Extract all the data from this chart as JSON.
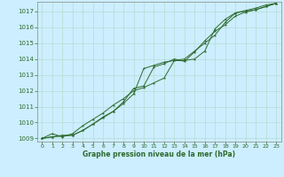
{
  "title": "Graphe pression niveau de la mer (hPa)",
  "background_color": "#cceeff",
  "grid_color": "#b0d8c8",
  "line_color": "#2d6a2d",
  "spine_color": "#888888",
  "xlim": [
    -0.5,
    23.5
  ],
  "ylim": [
    1008.8,
    1017.6
  ],
  "yticks": [
    1009,
    1010,
    1011,
    1012,
    1013,
    1014,
    1015,
    1016,
    1017
  ],
  "xticks": [
    0,
    1,
    2,
    3,
    4,
    5,
    6,
    7,
    8,
    9,
    10,
    11,
    12,
    13,
    14,
    15,
    16,
    17,
    18,
    19,
    20,
    21,
    22,
    23
  ],
  "series": [
    [
      1009.0,
      1009.3,
      1009.1,
      1009.3,
      1009.8,
      1010.2,
      1010.6,
      1011.1,
      1011.5,
      1012.0,
      1012.2,
      1012.5,
      1012.8,
      1013.9,
      1013.9,
      1014.0,
      1014.5,
      1015.9,
      1016.5,
      1016.9,
      1017.0,
      1017.1,
      1017.3,
      1017.5
    ],
    [
      1009.0,
      1009.1,
      1009.2,
      1009.2,
      1009.5,
      1009.9,
      1010.3,
      1010.7,
      1011.2,
      1011.8,
      1013.4,
      1013.6,
      1013.8,
      1013.9,
      1014.0,
      1014.5,
      1015.0,
      1015.5,
      1016.3,
      1016.9,
      1017.05,
      1017.2,
      1017.4,
      1017.5
    ],
    [
      1009.0,
      1009.1,
      1009.15,
      1009.2,
      1009.5,
      1009.9,
      1010.35,
      1010.7,
      1011.3,
      1012.15,
      1012.3,
      1013.5,
      1013.7,
      1014.0,
      1013.85,
      1014.45,
      1015.15,
      1015.75,
      1016.15,
      1016.7,
      1016.95,
      1017.1,
      1017.3,
      1017.5
    ]
  ]
}
